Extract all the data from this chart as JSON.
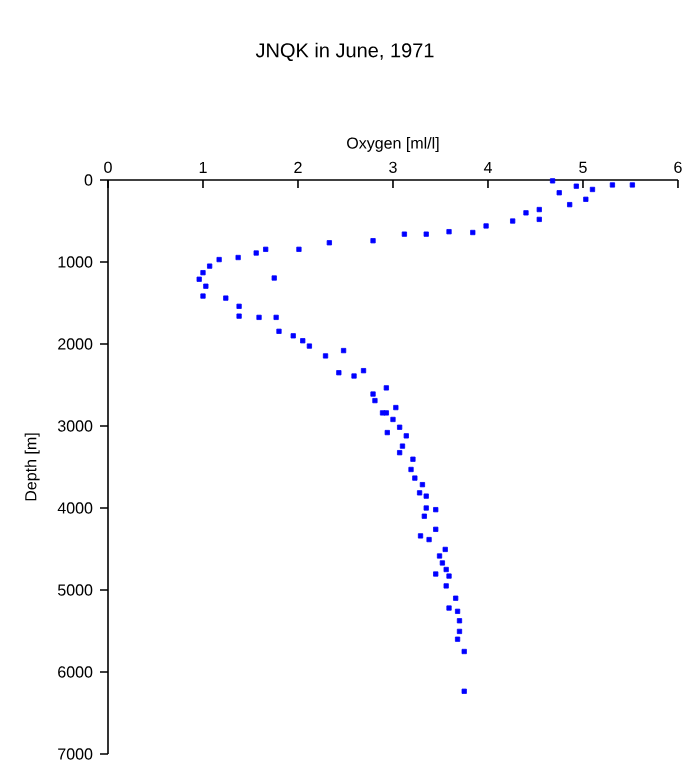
{
  "chart_data": {
    "type": "scatter",
    "title": "JNQK in June, 1971",
    "xlabel": "Oxygen [ml/l]",
    "ylabel": "Depth [m]",
    "xlim": [
      0,
      6
    ],
    "xticks": [
      0,
      1,
      2,
      3,
      4,
      5,
      6
    ],
    "ylim": [
      7000,
      0
    ],
    "yticks": [
      0,
      1000,
      2000,
      3000,
      4000,
      5000,
      6000,
      7000
    ],
    "marker": "square",
    "grid": false,
    "series": [
      {
        "color": "#0000ff",
        "x": [
          4.68,
          4.75,
          4.93,
          5.1,
          5.31,
          5.52,
          5.03,
          4.86,
          4.54,
          4.4,
          4.54,
          4.26,
          3.98,
          3.84,
          3.59,
          3.35,
          3.12,
          2.79,
          2.33,
          2.01,
          1.66,
          1.56,
          1.37,
          1.17,
          1.07,
          1.0,
          0.96,
          1.03,
          1.0,
          1.24,
          1.75,
          1.38,
          1.38,
          1.59,
          1.77,
          1.8,
          1.95,
          2.05,
          2.12,
          2.29,
          2.48,
          2.43,
          2.59,
          2.69,
          2.79,
          2.93,
          2.93,
          2.81,
          2.89,
          3.03,
          3.0,
          3.07,
          2.94,
          3.14,
          3.1,
          3.07,
          3.21,
          3.19,
          3.23,
          3.31,
          3.28,
          3.35,
          3.35,
          3.45,
          3.33,
          3.45,
          3.29,
          3.38,
          3.55,
          3.49,
          3.52,
          3.56,
          3.45,
          3.59,
          3.56,
          3.66,
          3.59,
          3.68,
          3.7,
          3.7,
          3.68,
          3.75,
          3.75
        ],
        "values": [
          10,
          155,
          75,
          115,
          60,
          60,
          235,
          300,
          360,
          400,
          480,
          500,
          560,
          640,
          630,
          660,
          660,
          740,
          765,
          845,
          845,
          890,
          945,
          970,
          1050,
          1130,
          1210,
          1295,
          1415,
          1440,
          1195,
          1540,
          1660,
          1675,
          1675,
          1845,
          1900,
          1960,
          2025,
          2145,
          2080,
          2350,
          2390,
          2325,
          2610,
          2535,
          2840,
          2690,
          2840,
          2775,
          2920,
          3015,
          3080,
          3120,
          3245,
          3325,
          3405,
          3530,
          3635,
          3715,
          3815,
          3855,
          4000,
          4020,
          4100,
          4260,
          4340,
          4385,
          4505,
          4585,
          4670,
          4750,
          4805,
          4830,
          4950,
          5100,
          5220,
          5260,
          5375,
          5505,
          5600,
          5750,
          6235
        ]
      }
    ]
  }
}
